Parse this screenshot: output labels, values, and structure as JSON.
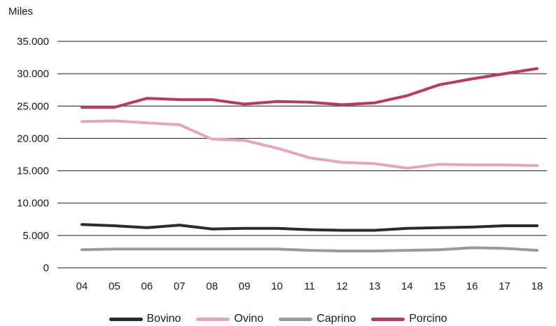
{
  "chart_data": {
    "type": "line",
    "ylabel": "Miles",
    "xlabel": "",
    "categories": [
      "04",
      "05",
      "06",
      "07",
      "08",
      "09",
      "10",
      "11",
      "12",
      "13",
      "14",
      "15",
      "16",
      "17",
      "18"
    ],
    "ylim": [
      0,
      35000
    ],
    "yticks": [
      0,
      5000,
      10000,
      15000,
      20000,
      25000,
      30000,
      35000
    ],
    "ytick_labels": [
      "0",
      "5.000",
      "10.000",
      "15.000",
      "20.000",
      "25.000",
      "30.000",
      "35.000"
    ],
    "grid": "horizontal",
    "legend_position": "bottom",
    "series": [
      {
        "name": "Bovino",
        "color": "#2b2b2b",
        "values": [
          6700,
          6500,
          6200,
          6600,
          6000,
          6100,
          6100,
          5900,
          5800,
          5800,
          6100,
          6200,
          6300,
          6500,
          6500
        ]
      },
      {
        "name": "Ovino",
        "color": "#e4a6bc",
        "values": [
          22600,
          22700,
          22400,
          22100,
          19900,
          19700,
          18500,
          17000,
          16300,
          16100,
          15400,
          16000,
          15900,
          15900,
          15800
        ]
      },
      {
        "name": "Caprino",
        "color": "#9a9a9a",
        "values": [
          2800,
          2900,
          2900,
          2900,
          2900,
          2900,
          2900,
          2700,
          2600,
          2600,
          2700,
          2800,
          3100,
          3000,
          2700
        ]
      },
      {
        "name": "Porcino",
        "color": "#b83a5e",
        "values": [
          24800,
          24800,
          26200,
          26000,
          26000,
          25300,
          25700,
          25600,
          25200,
          25500,
          26600,
          28300,
          29200,
          30000,
          30800
        ]
      }
    ]
  }
}
